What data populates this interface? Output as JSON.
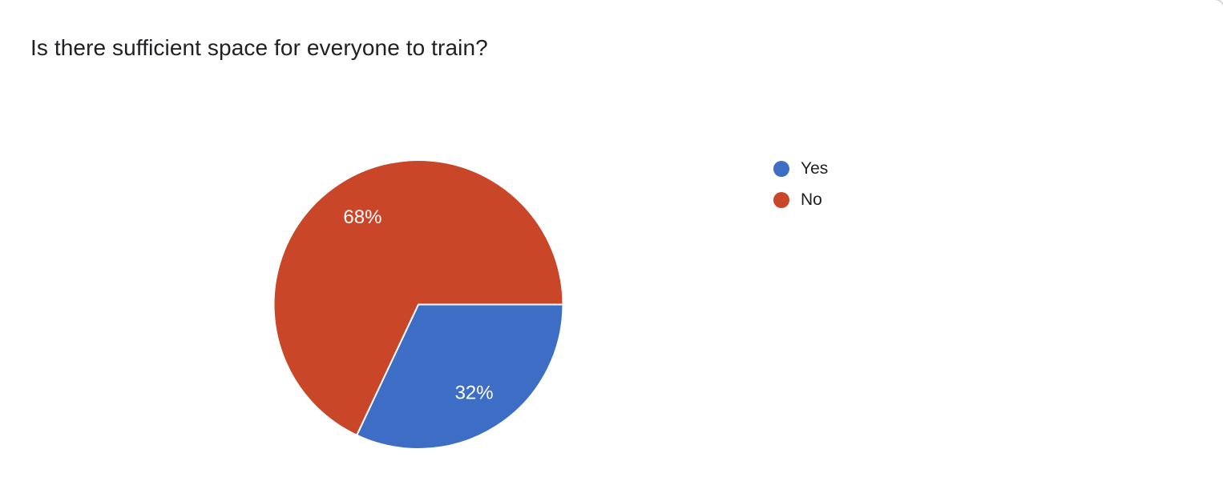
{
  "header": {
    "title": "Is there sufficient space for everyone to train?"
  },
  "chart_data": {
    "type": "pie",
    "title": "Is there sufficient space for everyone to train?",
    "slices": [
      {
        "label": "Yes",
        "value": 32,
        "percent_label": "32%",
        "color": "#3E6DC6"
      },
      {
        "label": "No",
        "value": 68,
        "percent_label": "68%",
        "color": "#C94628"
      }
    ],
    "start_angle_deg": 0,
    "direction": "clockwise",
    "legend_position": "right",
    "label_color": "#ffffff",
    "slice_border_color": "#ffffff",
    "background": "#ffffff"
  },
  "legend": {
    "items": [
      {
        "label": "Yes",
        "color": "#3E6DC6"
      },
      {
        "label": "No",
        "color": "#C94628"
      }
    ]
  }
}
